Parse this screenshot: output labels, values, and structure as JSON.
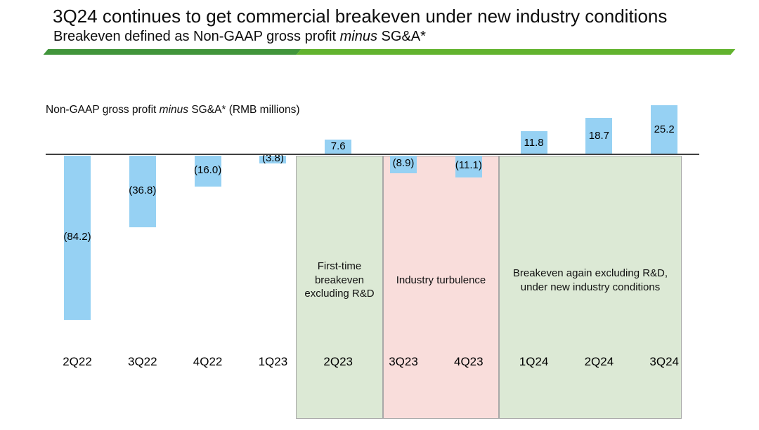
{
  "slide": {
    "title": "3Q24 continues to get commercial breakeven under new industry conditions",
    "subtitle": {
      "pre": "Breakeven defined as Non-GAAP gross profit ",
      "italic": "minus",
      "post": " SG&A*"
    },
    "divider": {
      "left_color": "#41953B",
      "right_color": "#62B32E"
    }
  },
  "chart_data": {
    "type": "bar",
    "axis_title": {
      "pre": "Non-GAAP gross profit ",
      "italic": "minus",
      "post": " SG&A* (RMB millions)"
    },
    "unit": "RMB millions",
    "categories": [
      "2Q22",
      "3Q22",
      "4Q22",
      "1Q23",
      "2Q23",
      "3Q23",
      "4Q23",
      "1Q24",
      "2Q24",
      "3Q24"
    ],
    "values": [
      -84.2,
      -36.8,
      -16.0,
      -3.8,
      7.6,
      -8.9,
      -11.1,
      11.8,
      18.7,
      25.2
    ],
    "labels": [
      "(84.2)",
      "(36.8)",
      "(16.0)",
      "(3.8)",
      "7.6",
      "(8.9)",
      "(11.1)",
      "11.8",
      "18.7",
      "25.2"
    ],
    "bar_color": "#96D1F3",
    "axis_line_color": "#404040",
    "baseline_value": 0,
    "grid": false,
    "legend": false,
    "regions": [
      {
        "label": "First-time breakeven excluding R&D",
        "start": 4,
        "end": 4,
        "fill": "#DCE9D5",
        "border": "#A8A8A8"
      },
      {
        "label": "Industry turbulence",
        "start": 5,
        "end": 6,
        "fill": "#F9DDDB",
        "border": "#A8A8A8"
      },
      {
        "label": "Breakeven again excluding R&D, under new industry conditions",
        "start": 7,
        "end": 9,
        "fill": "#DCE9D5",
        "border": "#A8A8A8"
      }
    ]
  }
}
